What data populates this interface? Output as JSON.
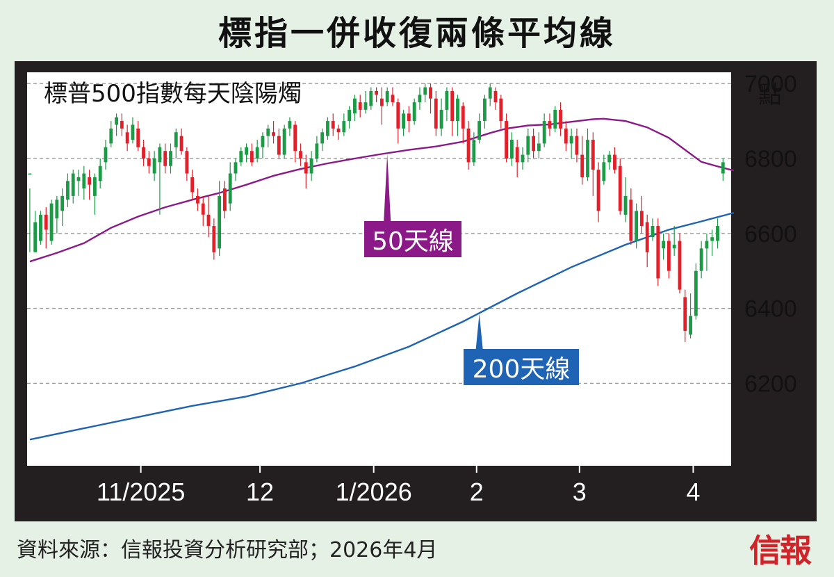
{
  "header": {
    "title": "標指一併收復兩條平均線"
  },
  "footer": {
    "source": "資料來源：信報投資分析研究部；2026年4月",
    "logo": "信報"
  },
  "colors": {
    "up": "#1c9b46",
    "down": "#e2202a",
    "ma50": "#8b1a88",
    "ma200": "#1e63b4",
    "panel": "#ffffff",
    "frame": "#231f20"
  },
  "chart_data": {
    "type": "candlestick",
    "title": "標普500指數每天陰陽燭",
    "ylabel": "點",
    "yticks": [
      6200,
      6400,
      6600,
      6800,
      7000
    ],
    "ylim": [
      5980,
      7030
    ],
    "grid": "horizontal dashed",
    "xticks": [
      {
        "label": "11/2025",
        "x": 20.5
      },
      {
        "label": "12",
        "x": 42.5
      },
      {
        "label": "1/2026",
        "x": 63.5
      },
      {
        "label": "2",
        "x": 82.5
      },
      {
        "label": "3",
        "x": 101.5
      },
      {
        "label": "4",
        "x": 122.5
      }
    ],
    "candles": [
      [
        6760,
        6760,
        6720,
        6550
      ],
      [
        6550,
        6630,
        6660,
        6550
      ],
      [
        6580,
        6650,
        6660,
        6570
      ],
      [
        6650,
        6610,
        6670,
        6560
      ],
      [
        6580,
        6680,
        6690,
        6570
      ],
      [
        6640,
        6690,
        6700,
        6600
      ],
      [
        6660,
        6700,
        6720,
        6620
      ],
      [
        6690,
        6740,
        6760,
        6670
      ],
      [
        6700,
        6760,
        6770,
        6680
      ],
      [
        6740,
        6750,
        6770,
        6700
      ],
      [
        6720,
        6760,
        6780,
        6690
      ],
      [
        6750,
        6730,
        6770,
        6690
      ],
      [
        6700,
        6750,
        6760,
        6650
      ],
      [
        6740,
        6780,
        6800,
        6720
      ],
      [
        6790,
        6830,
        6850,
        6770
      ],
      [
        6840,
        6880,
        6900,
        6830
      ],
      [
        6890,
        6910,
        6920,
        6860
      ],
      [
        6900,
        6880,
        6920,
        6860
      ],
      [
        6870,
        6840,
        6890,
        6820
      ],
      [
        6850,
        6890,
        6910,
        6840
      ],
      [
        6880,
        6830,
        6900,
        6820
      ],
      [
        6830,
        6800,
        6850,
        6780
      ],
      [
        6800,
        6780,
        6820,
        6760
      ],
      [
        6760,
        6800,
        6820,
        6740
      ],
      [
        6790,
        6830,
        6840,
        6650
      ],
      [
        6820,
        6780,
        6840,
        6760
      ],
      [
        6780,
        6820,
        6840,
        6760
      ],
      [
        6830,
        6870,
        6880,
        6800
      ],
      [
        6860,
        6820,
        6880,
        6810
      ],
      [
        6820,
        6760,
        6830,
        6740
      ],
      [
        6750,
        6710,
        6770,
        6690
      ],
      [
        6700,
        6680,
        6720,
        6660
      ],
      [
        6680,
        6650,
        6700,
        6620
      ],
      [
        6650,
        6620,
        6700,
        6590
      ],
      [
        6620,
        6550,
        6640,
        6530
      ],
      [
        6560,
        6700,
        6740,
        6540
      ],
      [
        6720,
        6660,
        6740,
        6640
      ],
      [
        6680,
        6760,
        6790,
        6660
      ],
      [
        6760,
        6790,
        6800,
        6740
      ],
      [
        6790,
        6820,
        6830,
        6780
      ],
      [
        6810,
        6830,
        6840,
        6790
      ],
      [
        6820,
        6790,
        6840,
        6780
      ],
      [
        6800,
        6830,
        6850,
        6790
      ],
      [
        6830,
        6860,
        6870,
        6800
      ],
      [
        6860,
        6880,
        6890,
        6830
      ],
      [
        6870,
        6860,
        6900,
        6840
      ],
      [
        6860,
        6810,
        6880,
        6800
      ],
      [
        6810,
        6880,
        6890,
        6800
      ],
      [
        6880,
        6900,
        6910,
        6860
      ],
      [
        6890,
        6820,
        6900,
        6790
      ],
      [
        6820,
        6800,
        6840,
        6780
      ],
      [
        6790,
        6760,
        6810,
        6720
      ],
      [
        6760,
        6800,
        6820,
        6740
      ],
      [
        6800,
        6840,
        6860,
        6790
      ],
      [
        6840,
        6870,
        6880,
        6820
      ],
      [
        6860,
        6900,
        6910,
        6850
      ],
      [
        6900,
        6880,
        6920,
        6860
      ],
      [
        6880,
        6870,
        6890,
        6850
      ],
      [
        6870,
        6900,
        6920,
        6860
      ],
      [
        6900,
        6930,
        6940,
        6880
      ],
      [
        6920,
        6960,
        6970,
        6900
      ],
      [
        6950,
        6930,
        6970,
        6910
      ],
      [
        6930,
        6950,
        6980,
        6920
      ],
      [
        6940,
        6980,
        6990,
        6930
      ],
      [
        6980,
        6970,
        6990,
        6950
      ],
      [
        6960,
        6940,
        6990,
        6890
      ],
      [
        6950,
        6980,
        6990,
        6940
      ],
      [
        6970,
        6950,
        6990,
        6940
      ],
      [
        6950,
        6880,
        6960,
        6840
      ],
      [
        6880,
        6920,
        6930,
        6860
      ],
      [
        6920,
        6900,
        6940,
        6870
      ],
      [
        6900,
        6950,
        6960,
        6890
      ],
      [
        6950,
        6970,
        6990,
        6930
      ],
      [
        6970,
        6990,
        7000,
        6950
      ],
      [
        6990,
        6960,
        7000,
        6920
      ],
      [
        6960,
        6880,
        6980,
        6860
      ],
      [
        6880,
        6930,
        6960,
        6860
      ],
      [
        6930,
        6980,
        6990,
        6900
      ],
      [
        6980,
        6900,
        6990,
        6860
      ],
      [
        6900,
        6960,
        6970,
        6860
      ],
      [
        6940,
        6880,
        6950,
        6840
      ],
      [
        6880,
        6790,
        6900,
        6770
      ],
      [
        6790,
        6850,
        6870,
        6780
      ],
      [
        6850,
        6900,
        6920,
        6840
      ],
      [
        6900,
        6960,
        6970,
        6880
      ],
      [
        6960,
        6990,
        7000,
        6940
      ],
      [
        6980,
        6950,
        6990,
        6930
      ],
      [
        6960,
        6900,
        6970,
        6880
      ],
      [
        6900,
        6800,
        6920,
        6790
      ],
      [
        6800,
        6850,
        6870,
        6780
      ],
      [
        6830,
        6790,
        6850,
        6750
      ],
      [
        6790,
        6810,
        6830,
        6770
      ],
      [
        6810,
        6860,
        6880,
        6790
      ],
      [
        6860,
        6820,
        6880,
        6800
      ],
      [
        6820,
        6840,
        6870,
        6800
      ],
      [
        6840,
        6900,
        6920,
        6830
      ],
      [
        6900,
        6880,
        6920,
        6860
      ],
      [
        6880,
        6930,
        6940,
        6870
      ],
      [
        6930,
        6880,
        6950,
        6860
      ],
      [
        6880,
        6840,
        6900,
        6820
      ],
      [
        6840,
        6860,
        6880,
        6800
      ],
      [
        6860,
        6810,
        6880,
        6790
      ],
      [
        6810,
        6750,
        6860,
        6730
      ],
      [
        6750,
        6850,
        6880,
        6740
      ],
      [
        6850,
        6770,
        6870,
        6700
      ],
      [
        6770,
        6660,
        6790,
        6630
      ],
      [
        6740,
        6790,
        6810,
        6730
      ],
      [
        6790,
        6810,
        6820,
        6770
      ],
      [
        6810,
        6770,
        6830,
        6760
      ],
      [
        6780,
        6660,
        6800,
        6650
      ],
      [
        6650,
        6700,
        6750,
        6630
      ],
      [
        6690,
        6580,
        6720,
        6570
      ],
      [
        6580,
        6660,
        6680,
        6560
      ],
      [
        6660,
        6620,
        6700,
        6600
      ],
      [
        6630,
        6550,
        6650,
        6510
      ],
      [
        6590,
        6620,
        6640,
        6580
      ],
      [
        6620,
        6480,
        6640,
        6460
      ],
      [
        6560,
        6580,
        6600,
        6530
      ],
      [
        6580,
        6500,
        6600,
        6480
      ],
      [
        6560,
        6570,
        6620,
        6540
      ],
      [
        6580,
        6450,
        6600,
        6440
      ],
      [
        6430,
        6340,
        6450,
        6310
      ],
      [
        6330,
        6380,
        6440,
        6320
      ],
      [
        6380,
        6500,
        6520,
        6370
      ],
      [
        6500,
        6560,
        6580,
        6480
      ],
      [
        6560,
        6580,
        6600,
        6500
      ],
      [
        6580,
        6590,
        6610,
        6540
      ],
      [
        6580,
        6620,
        6640,
        6560
      ],
      [
        6760,
        6790,
        6800,
        6740
      ]
    ],
    "series": [
      {
        "name": "50天線",
        "points": [
          [
            0,
            6525
          ],
          [
            5,
            6548
          ],
          [
            10,
            6574
          ],
          [
            15,
            6615
          ],
          [
            20,
            6645
          ],
          [
            25,
            6670
          ],
          [
            30,
            6690
          ],
          [
            35,
            6708
          ],
          [
            40,
            6730
          ],
          [
            45,
            6754
          ],
          [
            50,
            6772
          ],
          [
            55,
            6787
          ],
          [
            60,
            6800
          ],
          [
            65,
            6812
          ],
          [
            70,
            6823
          ],
          [
            75,
            6832
          ],
          [
            80,
            6845
          ],
          [
            85,
            6868
          ],
          [
            88,
            6880
          ],
          [
            92,
            6888
          ],
          [
            96,
            6891
          ],
          [
            100,
            6898
          ],
          [
            104,
            6905
          ],
          [
            106,
            6906
          ],
          [
            110,
            6900
          ],
          [
            114,
            6883
          ],
          [
            118,
            6855
          ],
          [
            121,
            6823
          ],
          [
            124,
            6791
          ],
          [
            128,
            6775
          ],
          [
            130,
            6768
          ]
        ]
      },
      {
        "name": "200天線",
        "points": [
          [
            0,
            6050
          ],
          [
            10,
            6080
          ],
          [
            20,
            6110
          ],
          [
            30,
            6140
          ],
          [
            40,
            6165
          ],
          [
            50,
            6200
          ],
          [
            60,
            6245
          ],
          [
            70,
            6298
          ],
          [
            80,
            6365
          ],
          [
            90,
            6440
          ],
          [
            100,
            6510
          ],
          [
            110,
            6570
          ],
          [
            118,
            6610
          ],
          [
            124,
            6632
          ],
          [
            130,
            6655
          ]
        ]
      }
    ]
  }
}
